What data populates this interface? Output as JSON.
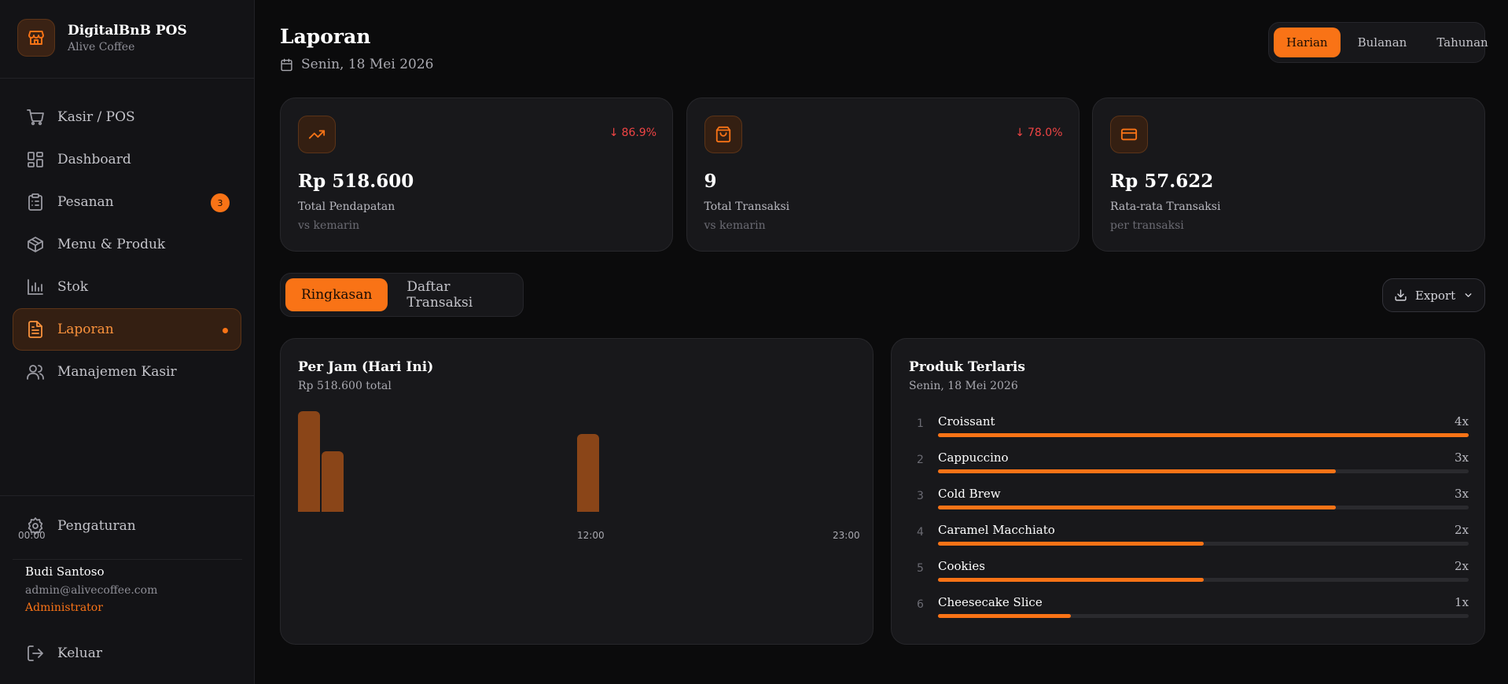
{
  "brand": {
    "name": "DigitalBnB POS",
    "subtitle": "Alive Coffee",
    "logo_icon": "store-icon"
  },
  "nav": [
    {
      "label": "Kasir / POS",
      "icon": "cart-icon"
    },
    {
      "label": "Dashboard",
      "icon": "grid-icon"
    },
    {
      "label": "Pesanan",
      "icon": "clipboard-icon",
      "badge": "3"
    },
    {
      "label": "Menu & Produk",
      "icon": "box-icon"
    },
    {
      "label": "Stok",
      "icon": "bar-chart-icon"
    },
    {
      "label": "Laporan",
      "icon": "file-icon",
      "active": true
    },
    {
      "label": "Manajemen Kasir",
      "icon": "users-icon"
    }
  ],
  "settings_label": "Pengaturan",
  "user": {
    "name": "Budi Santoso",
    "email": "admin@alivecoffee.com",
    "role": "Administrator"
  },
  "logout_label": "Keluar",
  "header": {
    "title": "Laporan",
    "date": "Senin, 18 Mei 2026"
  },
  "period": {
    "options": [
      "Harian",
      "Bulanan",
      "Tahunan"
    ],
    "selected": "Harian"
  },
  "stats": [
    {
      "value": "Rp 518.600",
      "label": "Total Pendapatan",
      "sub": "vs kemarin",
      "change": "86.9%",
      "direction": "down",
      "icon": "trend-up-icon"
    },
    {
      "value": "9",
      "label": "Total Transaksi",
      "sub": "vs kemarin",
      "change": "78.0%",
      "direction": "down",
      "icon": "shopping-bag-icon"
    },
    {
      "value": "Rp 57.622",
      "label": "Rata-rata Transaksi",
      "sub": "per transaksi",
      "icon": "credit-card-icon"
    }
  ],
  "tabs": {
    "items": [
      "Ringkasan",
      "Daftar Transaksi"
    ],
    "selected": "Ringkasan"
  },
  "export_label": "Export",
  "hourly": {
    "title": "Per Jam (Hari Ini)",
    "subtitle": "Rp 518.600 total",
    "x_labels": [
      "00:00",
      "12:00",
      "23:00"
    ]
  },
  "chart_data": {
    "type": "bar",
    "categories": [
      "00:00",
      "01:00",
      "02:00",
      "03:00",
      "04:00",
      "05:00",
      "06:00",
      "07:00",
      "08:00",
      "09:00",
      "10:00",
      "11:00",
      "12:00",
      "13:00",
      "14:00",
      "15:00",
      "16:00",
      "17:00",
      "18:00",
      "19:00",
      "20:00",
      "21:00",
      "22:00",
      "23:00"
    ],
    "values": [
      100,
      60,
      0,
      0,
      0,
      0,
      0,
      0,
      0,
      0,
      0,
      0,
      77,
      0,
      0,
      0,
      0,
      0,
      0,
      0,
      0,
      0,
      0,
      0
    ],
    "ylim": [
      0,
      100
    ],
    "bar_color": "#8a4518"
  },
  "top_products": {
    "title": "Produk Terlaris",
    "subtitle": "Senin, 18 Mei 2026",
    "items": [
      {
        "rank": "1",
        "name": "Croissant",
        "qty": "4x",
        "count": 4
      },
      {
        "rank": "2",
        "name": "Cappuccino",
        "qty": "3x",
        "count": 3
      },
      {
        "rank": "3",
        "name": "Cold Brew",
        "qty": "3x",
        "count": 3
      },
      {
        "rank": "4",
        "name": "Caramel Macchiato",
        "qty": "2x",
        "count": 2
      },
      {
        "rank": "5",
        "name": "Cookies",
        "qty": "2x",
        "count": 2
      },
      {
        "rank": "6",
        "name": "Cheesecake Slice",
        "qty": "1x",
        "count": 1
      }
    ]
  },
  "colors": {
    "accent": "#f97316",
    "negative": "#ef4444",
    "background": "#0b0b0c",
    "card": "#18181b"
  }
}
